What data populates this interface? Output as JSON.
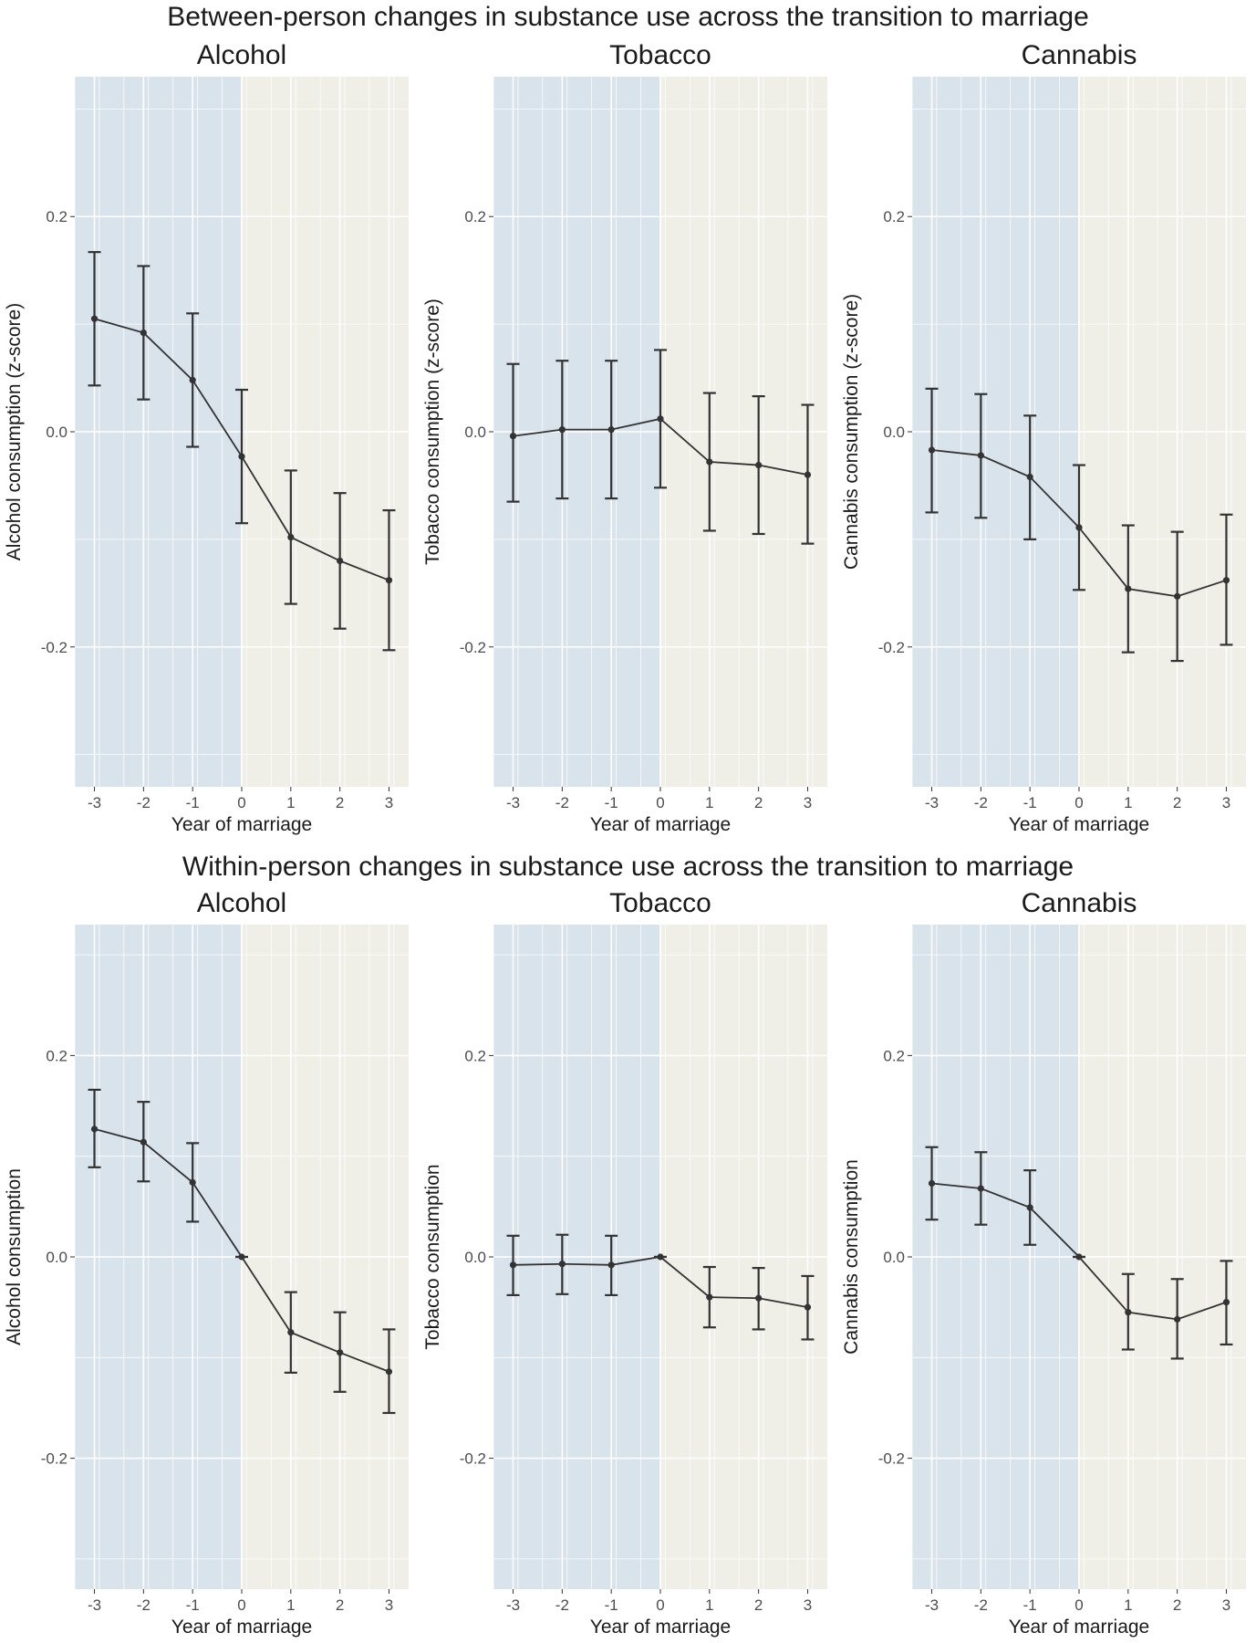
{
  "figure": {
    "top_title": "Between-person changes in substance use across the transition to marriage",
    "bottom_title": "Within-person changes in substance use across the transition to marriage",
    "colors": {
      "pre_bg": "#d9e3ec",
      "post_bg": "#efefe8",
      "grid": "#ffffff",
      "line": "#333333"
    }
  },
  "chart_data": [
    {
      "type": "line",
      "group": "between",
      "title": "Alcohol",
      "xlabel": "Year of marriage",
      "ylabel": "Alcohol consumption (z-score)",
      "x": [
        -3,
        -2,
        -1,
        0,
        1,
        2,
        3
      ],
      "x_tick_labels": [
        "-3",
        "-2",
        "-1",
        "0",
        "1",
        "2",
        "3"
      ],
      "y": [
        0.105,
        0.092,
        0.048,
        -0.023,
        -0.098,
        -0.12,
        -0.138
      ],
      "ci_low": [
        0.043,
        0.03,
        -0.014,
        -0.085,
        -0.16,
        -0.183,
        -0.203
      ],
      "ci_high": [
        0.167,
        0.154,
        0.11,
        0.039,
        -0.036,
        -0.057,
        -0.073
      ],
      "y_ticks": [
        0.2,
        0.0,
        -0.2
      ],
      "y_tick_labels": [
        "0.2",
        "0.0",
        "-0.2"
      ],
      "xlim": [
        -3.4,
        3.4
      ],
      "ylim": [
        -0.33,
        0.33
      ],
      "shaded_pre": [
        -3.4,
        0
      ],
      "shaded_post": [
        0,
        3.4
      ]
    },
    {
      "type": "line",
      "group": "between",
      "title": "Tobacco",
      "xlabel": "Year of marriage",
      "ylabel": "Tobacco consumption (z-score)",
      "x": [
        -3,
        -2,
        -1,
        0,
        1,
        2,
        3
      ],
      "x_tick_labels": [
        "-3",
        "-2",
        "-1",
        "0",
        "1",
        "2",
        "3"
      ],
      "y": [
        -0.004,
        0.002,
        0.002,
        0.012,
        -0.028,
        -0.031,
        -0.04
      ],
      "ci_low": [
        -0.065,
        -0.062,
        -0.062,
        -0.052,
        -0.092,
        -0.095,
        -0.104
      ],
      "ci_high": [
        0.063,
        0.066,
        0.066,
        0.076,
        0.036,
        0.033,
        0.025
      ],
      "y_ticks": [
        0.2,
        0.0,
        -0.2
      ],
      "y_tick_labels": [
        "0.2",
        "0.0",
        "-0.2"
      ],
      "xlim": [
        -3.4,
        3.4
      ],
      "ylim": [
        -0.33,
        0.33
      ],
      "shaded_pre": [
        -3.4,
        0
      ],
      "shaded_post": [
        0,
        3.4
      ]
    },
    {
      "type": "line",
      "group": "between",
      "title": "Cannabis",
      "xlabel": "Year of marriage",
      "ylabel": "Cannabis consumption (z-score)",
      "x": [
        -3,
        -2,
        -1,
        0,
        1,
        2,
        3
      ],
      "x_tick_labels": [
        "-3",
        "-2",
        "-1",
        "0",
        "1",
        "2",
        "3"
      ],
      "y": [
        -0.017,
        -0.022,
        -0.042,
        -0.089,
        -0.146,
        -0.153,
        -0.138
      ],
      "ci_low": [
        -0.075,
        -0.08,
        -0.1,
        -0.147,
        -0.205,
        -0.213,
        -0.198
      ],
      "ci_high": [
        0.04,
        0.035,
        0.015,
        -0.031,
        -0.087,
        -0.093,
        -0.077
      ],
      "y_ticks": [
        0.2,
        0.0,
        -0.2
      ],
      "y_tick_labels": [
        "0.2",
        "0.0",
        "-0.2"
      ],
      "xlim": [
        -3.4,
        3.4
      ],
      "ylim": [
        -0.33,
        0.33
      ],
      "shaded_pre": [
        -3.4,
        0
      ],
      "shaded_post": [
        0,
        3.4
      ]
    },
    {
      "type": "line",
      "group": "within",
      "title": "Alcohol",
      "xlabel": "Year of marriage",
      "ylabel": "Alcohol consumption",
      "x": [
        -3,
        -2,
        -1,
        0,
        1,
        2,
        3
      ],
      "x_tick_labels": [
        "-3",
        "-2",
        "-1",
        "0",
        "1",
        "2",
        "3"
      ],
      "y": [
        0.127,
        0.114,
        0.074,
        0.0,
        -0.075,
        -0.095,
        -0.114
      ],
      "ci_low": [
        0.089,
        0.075,
        0.035,
        0.0,
        -0.115,
        -0.134,
        -0.155
      ],
      "ci_high": [
        0.166,
        0.154,
        0.113,
        0.0,
        -0.035,
        -0.055,
        -0.072
      ],
      "y_ticks": [
        0.2,
        0.0,
        -0.2
      ],
      "y_tick_labels": [
        "0.2",
        "0.0",
        "-0.2"
      ],
      "xlim": [
        -3.4,
        3.4
      ],
      "ylim": [
        -0.33,
        0.33
      ],
      "shaded_pre": [
        -3.4,
        0
      ],
      "shaded_post": [
        0,
        3.4
      ]
    },
    {
      "type": "line",
      "group": "within",
      "title": "Tobacco",
      "xlabel": "Year of marriage",
      "ylabel": "Tobacco consumption",
      "x": [
        -3,
        -2,
        -1,
        0,
        1,
        2,
        3
      ],
      "x_tick_labels": [
        "-3",
        "-2",
        "-1",
        "0",
        "1",
        "2",
        "3"
      ],
      "y": [
        -0.008,
        -0.007,
        -0.008,
        0.0,
        -0.04,
        -0.041,
        -0.05
      ],
      "ci_low": [
        -0.038,
        -0.037,
        -0.038,
        0.0,
        -0.07,
        -0.072,
        -0.082
      ],
      "ci_high": [
        0.021,
        0.022,
        0.021,
        0.0,
        -0.01,
        -0.011,
        -0.019
      ],
      "y_ticks": [
        0.2,
        0.0,
        -0.2
      ],
      "y_tick_labels": [
        "0.2",
        "0.0",
        "-0.2"
      ],
      "xlim": [
        -3.4,
        3.4
      ],
      "ylim": [
        -0.33,
        0.33
      ],
      "shaded_pre": [
        -3.4,
        0
      ],
      "shaded_post": [
        0,
        3.4
      ]
    },
    {
      "type": "line",
      "group": "within",
      "title": "Cannabis",
      "xlabel": "Year of marriage",
      "ylabel": "Cannabis consumption",
      "x": [
        -3,
        -2,
        -1,
        0,
        1,
        2,
        3
      ],
      "x_tick_labels": [
        "-3",
        "-2",
        "-1",
        "0",
        "1",
        "2",
        "3"
      ],
      "y": [
        0.073,
        0.068,
        0.049,
        0.0,
        -0.055,
        -0.062,
        -0.045
      ],
      "ci_low": [
        0.037,
        0.032,
        0.012,
        0.0,
        -0.092,
        -0.101,
        -0.087
      ],
      "ci_high": [
        0.109,
        0.104,
        0.086,
        0.0,
        -0.017,
        -0.022,
        -0.004
      ],
      "y_ticks": [
        0.2,
        0.0,
        -0.2
      ],
      "y_tick_labels": [
        "0.2",
        "0.0",
        "-0.2"
      ],
      "xlim": [
        -3.4,
        3.4
      ],
      "ylim": [
        -0.33,
        0.33
      ],
      "shaded_pre": [
        -3.4,
        0
      ],
      "shaded_post": [
        0,
        3.4
      ]
    }
  ]
}
